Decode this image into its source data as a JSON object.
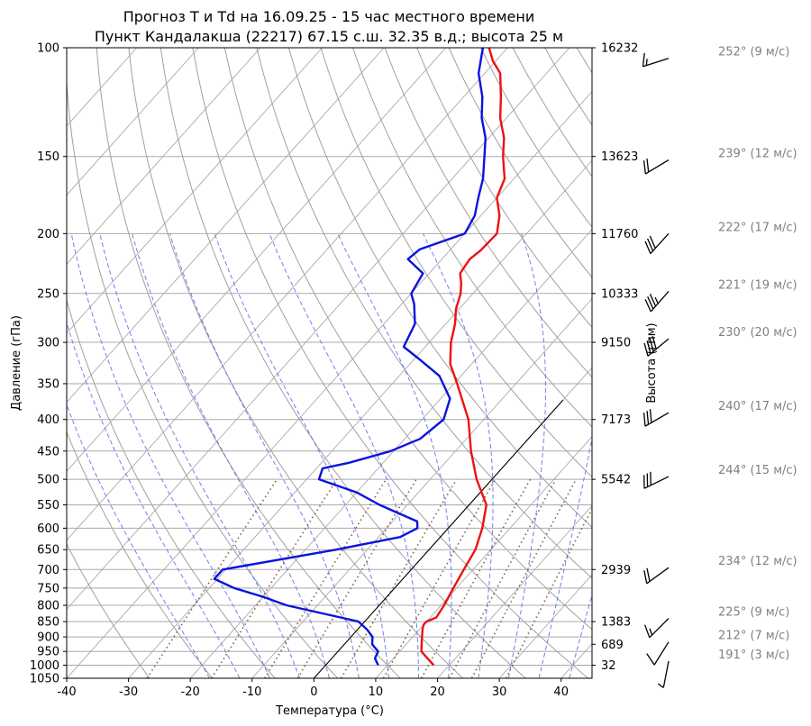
{
  "chart_data": {
    "type": "line",
    "title_line1": "Прогноз T и Td на 16.09.25 - 15 час местного времени",
    "title_line2": "Пункт Кандалакша (22217) 67.15 с.ш. 32.35 в.д.; высота 25 м",
    "xlabel": "Температура (°C)",
    "ylabel": "Давление (гПа)",
    "ylabel_right": "Высота (гпм)",
    "xlim": [
      -40,
      45
    ],
    "ylim": [
      1050,
      100
    ],
    "y_scale": "log",
    "x_ticks": [
      "-40",
      "-30",
      "-20",
      "-10",
      "0",
      "10",
      "20",
      "30",
      "40"
    ],
    "y_ticks": [
      "100",
      "150",
      "200",
      "250",
      "300",
      "350",
      "400",
      "450",
      "500",
      "550",
      "600",
      "650",
      "700",
      "750",
      "800",
      "850",
      "900",
      "950",
      "1000",
      "1050"
    ],
    "height_ticks": [
      {
        "p": 100,
        "label": "16232"
      },
      {
        "p": 150,
        "label": "13623"
      },
      {
        "p": 200,
        "label": "11760"
      },
      {
        "p": 250,
        "label": "10333"
      },
      {
        "p": 300,
        "label": "9150"
      },
      {
        "p": 400,
        "label": "7173"
      },
      {
        "p": 500,
        "label": "5542"
      },
      {
        "p": 700,
        "label": "2939"
      },
      {
        "p": 850,
        "label": "1383"
      },
      {
        "p": 925,
        "label": "689"
      },
      {
        "p": 1000,
        "label": "32"
      }
    ],
    "grid": true,
    "series": [
      {
        "name": "T",
        "color": "#ee1111",
        "points": [
          [
            1000,
            17.5
          ],
          [
            975,
            15.5
          ],
          [
            950,
            13.5
          ],
          [
            925,
            12.5
          ],
          [
            900,
            11.5
          ],
          [
            875,
            10.5
          ],
          [
            860,
            10.0
          ],
          [
            850,
            10.0
          ],
          [
            837,
            11.0
          ],
          [
            800,
            10.5
          ],
          [
            750,
            9.5
          ],
          [
            700,
            8.5
          ],
          [
            650,
            7.5
          ],
          [
            600,
            5.5
          ],
          [
            550,
            2.8
          ],
          [
            500,
            -2.5
          ],
          [
            450,
            -7.5
          ],
          [
            400,
            -12.5
          ],
          [
            350,
            -19.5
          ],
          [
            325,
            -23.5
          ],
          [
            300,
            -26.5
          ],
          [
            280,
            -28.5
          ],
          [
            265,
            -30.5
          ],
          [
            250,
            -32.0
          ],
          [
            240,
            -33.5
          ],
          [
            232,
            -35.0
          ],
          [
            220,
            -35.5
          ],
          [
            213,
            -35.0
          ],
          [
            200,
            -34.8
          ],
          [
            187,
            -37.0
          ],
          [
            175,
            -40.0
          ],
          [
            163,
            -41.5
          ],
          [
            150,
            -45.0
          ],
          [
            140,
            -47.5
          ],
          [
            130,
            -51.0
          ],
          [
            120,
            -54.0
          ],
          [
            110,
            -57.5
          ],
          [
            105,
            -60.5
          ],
          [
            100,
            -63.0
          ]
        ]
      },
      {
        "name": "Td",
        "color": "#0a14dd",
        "points": [
          [
            1000,
            8.5
          ],
          [
            975,
            7.0
          ],
          [
            950,
            6.5
          ],
          [
            925,
            4.5
          ],
          [
            900,
            3.5
          ],
          [
            875,
            1.5
          ],
          [
            850,
            -1.0
          ],
          [
            837,
            -4.5
          ],
          [
            800,
            -15.0
          ],
          [
            775,
            -20.0
          ],
          [
            750,
            -26.0
          ],
          [
            725,
            -30.5
          ],
          [
            700,
            -30.5
          ],
          [
            650,
            -15.0
          ],
          [
            620,
            -6.5
          ],
          [
            600,
            -5.0
          ],
          [
            585,
            -6.0
          ],
          [
            550,
            -14.5
          ],
          [
            525,
            -20.0
          ],
          [
            500,
            -28.0
          ],
          [
            480,
            -29.0
          ],
          [
            470,
            -25.5
          ],
          [
            450,
            -20.5
          ],
          [
            430,
            -17.5
          ],
          [
            400,
            -16.5
          ],
          [
            370,
            -18.5
          ],
          [
            340,
            -23.5
          ],
          [
            320,
            -29.0
          ],
          [
            305,
            -33.5
          ],
          [
            280,
            -35.0
          ],
          [
            260,
            -38.0
          ],
          [
            250,
            -40.0
          ],
          [
            232,
            -41.0
          ],
          [
            220,
            -45.5
          ],
          [
            212,
            -45.0
          ],
          [
            200,
            -40.0
          ],
          [
            187,
            -41.0
          ],
          [
            175,
            -43.0
          ],
          [
            163,
            -45.0
          ],
          [
            150,
            -48.0
          ],
          [
            140,
            -50.5
          ],
          [
            130,
            -54.0
          ],
          [
            120,
            -57.0
          ],
          [
            110,
            -61.0
          ],
          [
            100,
            -64.0
          ]
        ]
      }
    ],
    "reference_line": {
      "name": "0°C",
      "points": [
        [
          1050,
          0
        ],
        [
          372,
          0
        ]
      ]
    },
    "winds": [
      {
        "p": 104,
        "label": "252° (9 м/с)",
        "dir": 252,
        "speed": 9
      },
      {
        "p": 152,
        "label": "239° (12 м/с)",
        "dir": 239,
        "speed": 12
      },
      {
        "p": 200,
        "label": "222° (17 м/с)",
        "dir": 222,
        "speed": 17
      },
      {
        "p": 248,
        "label": "221° (19 м/с)",
        "dir": 221,
        "speed": 19
      },
      {
        "p": 296,
        "label": "230° (20 м/с)",
        "dir": 230,
        "speed": 20
      },
      {
        "p": 390,
        "label": "240° (17 м/с)",
        "dir": 240,
        "speed": 17
      },
      {
        "p": 495,
        "label": "244° (15 м/с)",
        "dir": 244,
        "speed": 15
      },
      {
        "p": 695,
        "label": "234° (12 м/с)",
        "dir": 234,
        "speed": 12
      },
      {
        "p": 840,
        "label": "225° (9 м/с)",
        "dir": 225,
        "speed": 9
      },
      {
        "p": 917,
        "label": "212° (7 м/с)",
        "dir": 212,
        "speed": 7
      },
      {
        "p": 985,
        "label": "191° (3 м/с)",
        "dir": 191,
        "speed": 3
      }
    ]
  }
}
